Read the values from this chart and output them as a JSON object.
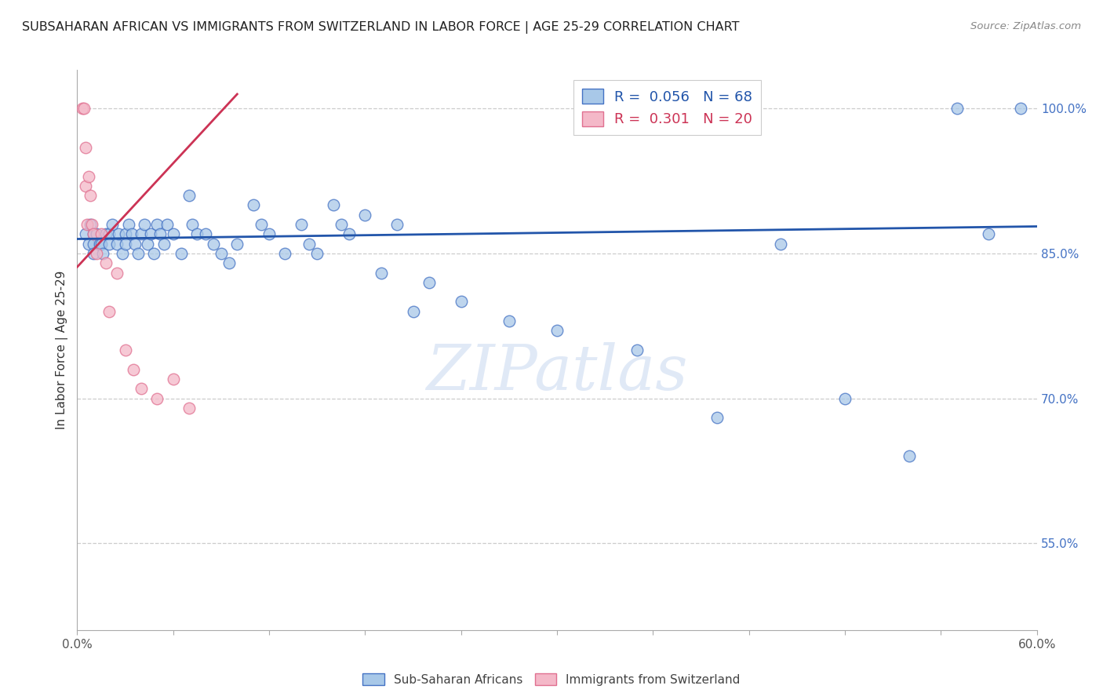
{
  "title": "SUBSAHARAN AFRICAN VS IMMIGRANTS FROM SWITZERLAND IN LABOR FORCE | AGE 25-29 CORRELATION CHART",
  "source": "Source: ZipAtlas.com",
  "ylabel": "In Labor Force | Age 25-29",
  "xlim": [
    0.0,
    0.6
  ],
  "ylim": [
    0.46,
    1.04
  ],
  "xticks": [
    0.0,
    0.06,
    0.12,
    0.18,
    0.24,
    0.3,
    0.36,
    0.42,
    0.48,
    0.54,
    0.6
  ],
  "xticklabels": [
    "0.0%",
    "",
    "",
    "",
    "",
    "",
    "",
    "",
    "",
    "",
    "60.0%"
  ],
  "yticks_right": [
    1.0,
    0.85,
    0.7,
    0.55
  ],
  "ytick_right_labels": [
    "100.0%",
    "85.0%",
    "70.0%",
    "55.0%"
  ],
  "blue_R": 0.056,
  "blue_N": 68,
  "pink_R": 0.301,
  "pink_N": 20,
  "blue_color": "#a8c8e8",
  "pink_color": "#f4b8c8",
  "blue_edge_color": "#4472c4",
  "pink_edge_color": "#e07090",
  "blue_line_color": "#2255aa",
  "pink_line_color": "#cc3355",
  "watermark": "ZIPatlas",
  "blue_scatter_x": [
    0.005,
    0.007,
    0.008,
    0.01,
    0.01,
    0.01,
    0.012,
    0.014,
    0.015,
    0.016,
    0.018,
    0.02,
    0.02,
    0.022,
    0.025,
    0.026,
    0.028,
    0.03,
    0.03,
    0.032,
    0.034,
    0.036,
    0.038,
    0.04,
    0.042,
    0.044,
    0.046,
    0.048,
    0.05,
    0.052,
    0.054,
    0.056,
    0.06,
    0.065,
    0.07,
    0.072,
    0.075,
    0.08,
    0.085,
    0.09,
    0.095,
    0.1,
    0.11,
    0.115,
    0.12,
    0.13,
    0.14,
    0.145,
    0.15,
    0.16,
    0.165,
    0.17,
    0.18,
    0.19,
    0.2,
    0.21,
    0.22,
    0.24,
    0.27,
    0.3,
    0.35,
    0.4,
    0.44,
    0.48,
    0.52,
    0.55,
    0.57,
    0.59
  ],
  "blue_scatter_y": [
    0.87,
    0.86,
    0.88,
    0.87,
    0.86,
    0.85,
    0.87,
    0.86,
    0.86,
    0.85,
    0.87,
    0.87,
    0.86,
    0.88,
    0.86,
    0.87,
    0.85,
    0.87,
    0.86,
    0.88,
    0.87,
    0.86,
    0.85,
    0.87,
    0.88,
    0.86,
    0.87,
    0.85,
    0.88,
    0.87,
    0.86,
    0.88,
    0.87,
    0.85,
    0.91,
    0.88,
    0.87,
    0.87,
    0.86,
    0.85,
    0.84,
    0.86,
    0.9,
    0.88,
    0.87,
    0.85,
    0.88,
    0.86,
    0.85,
    0.9,
    0.88,
    0.87,
    0.89,
    0.83,
    0.88,
    0.79,
    0.82,
    0.8,
    0.78,
    0.77,
    0.75,
    0.68,
    0.86,
    0.7,
    0.64,
    1.0,
    0.87,
    1.0
  ],
  "pink_scatter_x": [
    0.003,
    0.004,
    0.005,
    0.005,
    0.006,
    0.007,
    0.008,
    0.009,
    0.01,
    0.012,
    0.015,
    0.018,
    0.02,
    0.025,
    0.03,
    0.035,
    0.04,
    0.05,
    0.06,
    0.07
  ],
  "pink_scatter_y": [
    1.0,
    1.0,
    0.96,
    0.92,
    0.88,
    0.93,
    0.91,
    0.88,
    0.87,
    0.85,
    0.87,
    0.84,
    0.79,
    0.83,
    0.75,
    0.73,
    0.71,
    0.7,
    0.72,
    0.69
  ],
  "blue_trendline_x": [
    0.0,
    0.6
  ],
  "blue_trendline_y": [
    0.865,
    0.878
  ],
  "pink_trendline_x": [
    0.0,
    0.1
  ],
  "pink_trendline_y": [
    0.836,
    1.015
  ],
  "legend_label1": "Sub-Saharan Africans",
  "legend_label2": "Immigrants from Switzerland"
}
